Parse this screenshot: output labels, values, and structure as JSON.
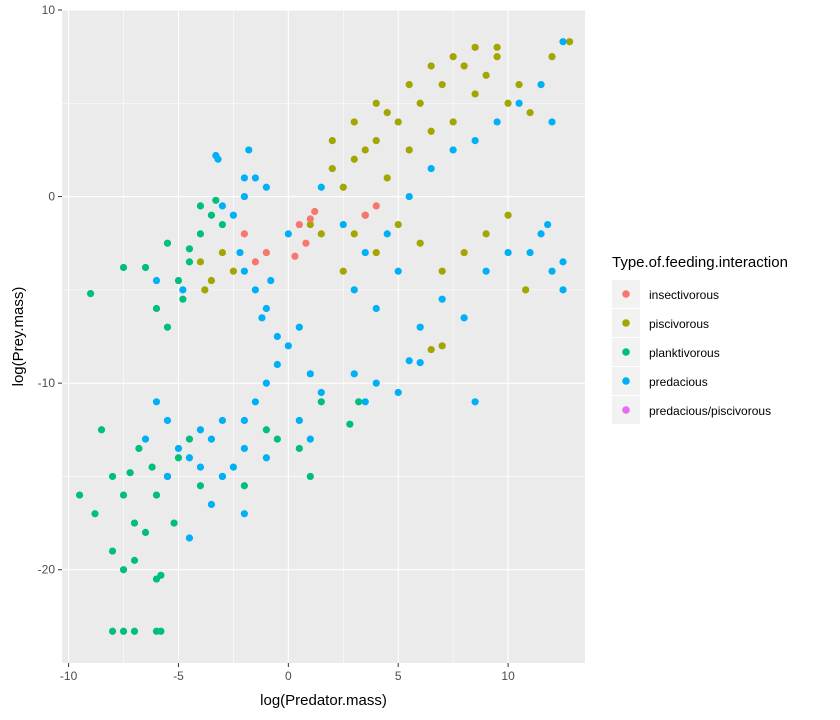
{
  "chart_data": {
    "type": "scatter",
    "xlabel": "log(Predator.mass)",
    "ylabel": "log(Prey.mass)",
    "xlim": [
      -10.3,
      13.5
    ],
    "ylim": [
      -25,
      10
    ],
    "x_ticks": [
      {
        "value": -10,
        "label": "-10"
      },
      {
        "value": -5,
        "label": "-5"
      },
      {
        "value": 0,
        "label": "0"
      },
      {
        "value": 5,
        "label": "5"
      },
      {
        "value": 10,
        "label": "10"
      }
    ],
    "y_ticks": [
      {
        "value": 10,
        "label": "10"
      },
      {
        "value": 0,
        "label": "0"
      },
      {
        "value": -10,
        "label": "-10"
      },
      {
        "value": -20,
        "label": "-20"
      }
    ],
    "grid": true,
    "panel_background": "#ebebeb",
    "legend": {
      "title": "Type.of.feeding.interaction",
      "position": "right",
      "entries": [
        {
          "label": "insectivorous",
          "color": "#f8766d"
        },
        {
          "label": "piscivorous",
          "color": "#a3a500"
        },
        {
          "label": "planktivorous",
          "color": "#00bf7d"
        },
        {
          "label": "predacious",
          "color": "#00b0f6"
        },
        {
          "label": "predacious/piscivorous",
          "color": "#e76bf3"
        }
      ]
    },
    "series": [
      {
        "name": "piscivorous",
        "color": "#a3a500",
        "points": [
          [
            2.0,
            1.5
          ],
          [
            2.5,
            0.5
          ],
          [
            3.0,
            2.0
          ],
          [
            3.5,
            -1.0
          ],
          [
            4.0,
            3.0
          ],
          [
            4.5,
            1.0
          ],
          [
            5.0,
            4.0
          ],
          [
            5.5,
            2.5
          ],
          [
            6.0,
            5.0
          ],
          [
            6.5,
            3.5
          ],
          [
            7.0,
            6.0
          ],
          [
            7.5,
            4.0
          ],
          [
            8.0,
            7.0
          ],
          [
            8.5,
            5.5
          ],
          [
            9.0,
            6.5
          ],
          [
            9.5,
            7.5
          ],
          [
            10.0,
            5.0
          ],
          [
            10.5,
            6.0
          ],
          [
            11.0,
            4.5
          ],
          [
            12.0,
            7.5
          ],
          [
            12.8,
            8.3
          ],
          [
            3.0,
            -2.0
          ],
          [
            4.0,
            -3.0
          ],
          [
            5.0,
            -1.5
          ],
          [
            6.0,
            -2.5
          ],
          [
            7.0,
            -4.0
          ],
          [
            8.0,
            -3.0
          ],
          [
            9.0,
            -2.0
          ],
          [
            10.0,
            -1.0
          ],
          [
            10.8,
            -5.0
          ],
          [
            2.5,
            -4.0
          ],
          [
            1.5,
            -2.0
          ],
          [
            1.0,
            -1.5
          ],
          [
            3.5,
            2.5
          ],
          [
            4.5,
            4.5
          ],
          [
            5.5,
            6.0
          ],
          [
            6.5,
            7.0
          ],
          [
            7.5,
            7.5
          ],
          [
            8.5,
            8.0
          ],
          [
            9.5,
            8.0
          ],
          [
            -4.0,
            -3.5
          ],
          [
            -3.5,
            -4.5
          ],
          [
            -3.0,
            -3.0
          ],
          [
            -2.5,
            -4.0
          ],
          [
            -3.8,
            -5.0
          ],
          [
            6.5,
            -8.2
          ],
          [
            7.0,
            -8.0
          ],
          [
            2.0,
            3.0
          ],
          [
            3.0,
            4.0
          ],
          [
            4.0,
            5.0
          ]
        ]
      },
      {
        "name": "insectivorous",
        "color": "#f8766d",
        "points": [
          [
            -2.0,
            -2.0
          ],
          [
            -1.5,
            -3.5
          ],
          [
            0.5,
            -1.5
          ],
          [
            1.0,
            -1.2
          ],
          [
            0.8,
            -2.5
          ],
          [
            1.2,
            -0.8
          ],
          [
            3.5,
            -1.0
          ],
          [
            4.0,
            -0.5
          ],
          [
            -1.0,
            -3.0
          ],
          [
            0.3,
            -3.2
          ]
        ]
      },
      {
        "name": "planktivorous",
        "color": "#00bf7d",
        "points": [
          [
            -9.0,
            -5.2
          ],
          [
            -8.5,
            -12.5
          ],
          [
            -8.0,
            -15.0
          ],
          [
            -7.5,
            -16.0
          ],
          [
            -7.0,
            -17.5
          ],
          [
            -6.5,
            -18.0
          ],
          [
            -6.0,
            -16.0
          ],
          [
            -5.5,
            -15.0
          ],
          [
            -5.0,
            -14.0
          ],
          [
            -4.5,
            -13.0
          ],
          [
            -8.0,
            -19.0
          ],
          [
            -7.5,
            -20.0
          ],
          [
            -7.0,
            -19.5
          ],
          [
            -6.0,
            -20.5
          ],
          [
            -5.8,
            -20.3
          ],
          [
            -8.0,
            -23.3
          ],
          [
            -7.5,
            -23.3
          ],
          [
            -7.0,
            -23.3
          ],
          [
            -6.0,
            -23.3
          ],
          [
            -5.8,
            -23.3
          ],
          [
            -7.5,
            -3.8
          ],
          [
            -6.5,
            -3.8
          ],
          [
            -5.5,
            -2.5
          ],
          [
            -4.5,
            -2.8
          ],
          [
            -4.0,
            -2.0
          ],
          [
            -5.0,
            -4.5
          ],
          [
            -6.0,
            -6.0
          ],
          [
            -5.5,
            -7.0
          ],
          [
            -4.8,
            -5.5
          ],
          [
            -3.0,
            -1.5
          ],
          [
            -1.0,
            -12.5
          ],
          [
            -0.5,
            -13.0
          ],
          [
            0.5,
            -13.5
          ],
          [
            1.0,
            -15.0
          ],
          [
            1.5,
            -11.0
          ],
          [
            2.8,
            -12.2
          ],
          [
            3.2,
            -11.0
          ],
          [
            -2.0,
            -15.5
          ],
          [
            -3.0,
            -15.0
          ],
          [
            -4.0,
            -15.5
          ],
          [
            -3.5,
            -1.0
          ],
          [
            -4.0,
            -0.5
          ],
          [
            -9.5,
            -16.0
          ],
          [
            -8.8,
            -17.0
          ],
          [
            -6.8,
            -13.5
          ],
          [
            -6.2,
            -14.5
          ],
          [
            -5.2,
            -17.5
          ],
          [
            -7.2,
            -14.8
          ],
          [
            -3.3,
            -0.2
          ],
          [
            -4.5,
            -3.5
          ]
        ]
      },
      {
        "name": "predacious",
        "color": "#00b0f6",
        "points": [
          [
            -6.0,
            -11.0
          ],
          [
            -5.5,
            -12.0
          ],
          [
            -5.0,
            -13.5
          ],
          [
            -4.5,
            -14.0
          ],
          [
            -4.0,
            -12.5
          ],
          [
            -3.5,
            -13.0
          ],
          [
            -3.0,
            -15.0
          ],
          [
            -2.5,
            -14.5
          ],
          [
            -2.0,
            -12.0
          ],
          [
            -1.5,
            -11.0
          ],
          [
            -1.0,
            -10.0
          ],
          [
            -0.5,
            -9.0
          ],
          [
            0.0,
            -8.0
          ],
          [
            0.5,
            -7.0
          ],
          [
            1.0,
            -9.5
          ],
          [
            1.5,
            -10.5
          ],
          [
            -2.0,
            -4.0
          ],
          [
            -1.5,
            -5.0
          ],
          [
            -1.0,
            -6.0
          ],
          [
            -0.5,
            -7.5
          ],
          [
            -2.5,
            -1.0
          ],
          [
            -2.0,
            0.0
          ],
          [
            -1.5,
            1.0
          ],
          [
            -3.0,
            -0.5
          ],
          [
            -3.2,
            2.0
          ],
          [
            -1.8,
            2.5
          ],
          [
            -3.3,
            2.2
          ],
          [
            -1.2,
            -6.5
          ],
          [
            -0.8,
            -4.5
          ],
          [
            -2.2,
            -3.0
          ],
          [
            3.0,
            -5.0
          ],
          [
            4.0,
            -6.0
          ],
          [
            5.0,
            -4.0
          ],
          [
            6.0,
            -7.0
          ],
          [
            7.0,
            -5.5
          ],
          [
            8.0,
            -6.5
          ],
          [
            9.0,
            -4.0
          ],
          [
            10.0,
            -3.0
          ],
          [
            11.5,
            -2.0
          ],
          [
            12.5,
            -3.5
          ],
          [
            4.5,
            -2.0
          ],
          [
            5.5,
            0.0
          ],
          [
            6.5,
            1.5
          ],
          [
            7.5,
            2.5
          ],
          [
            8.5,
            3.0
          ],
          [
            9.5,
            4.0
          ],
          [
            10.5,
            5.0
          ],
          [
            11.5,
            6.0
          ],
          [
            12.0,
            4.0
          ],
          [
            12.5,
            8.3
          ],
          [
            5.5,
            -8.8
          ],
          [
            6.0,
            -8.9
          ],
          [
            3.0,
            -9.5
          ],
          [
            4.0,
            -10.0
          ],
          [
            3.5,
            -11.0
          ],
          [
            5.0,
            -10.5
          ],
          [
            8.5,
            -11.0
          ],
          [
            -3.5,
            -16.5
          ],
          [
            -2.0,
            -17.0
          ],
          [
            -4.5,
            -18.3
          ],
          [
            -2.0,
            1.0
          ],
          [
            -1.0,
            0.5
          ],
          [
            0.0,
            -2.0
          ],
          [
            1.5,
            0.5
          ],
          [
            2.5,
            -1.5
          ],
          [
            3.5,
            -3.0
          ],
          [
            11.0,
            -3.0
          ],
          [
            12.0,
            -4.0
          ],
          [
            11.8,
            -1.5
          ],
          [
            12.5,
            -5.0
          ],
          [
            -5.5,
            -15.0
          ],
          [
            -6.5,
            -13.0
          ],
          [
            -4.0,
            -14.5
          ],
          [
            -3.0,
            -12.0
          ],
          [
            -2.0,
            -13.5
          ],
          [
            -1.0,
            -14.0
          ],
          [
            0.5,
            -12.0
          ],
          [
            1.0,
            -13.0
          ],
          [
            -6.0,
            -4.5
          ],
          [
            -4.8,
            -5.0
          ]
        ]
      },
      {
        "name": "predacious/piscivorous",
        "color": "#e76bf3",
        "points": []
      }
    ]
  }
}
